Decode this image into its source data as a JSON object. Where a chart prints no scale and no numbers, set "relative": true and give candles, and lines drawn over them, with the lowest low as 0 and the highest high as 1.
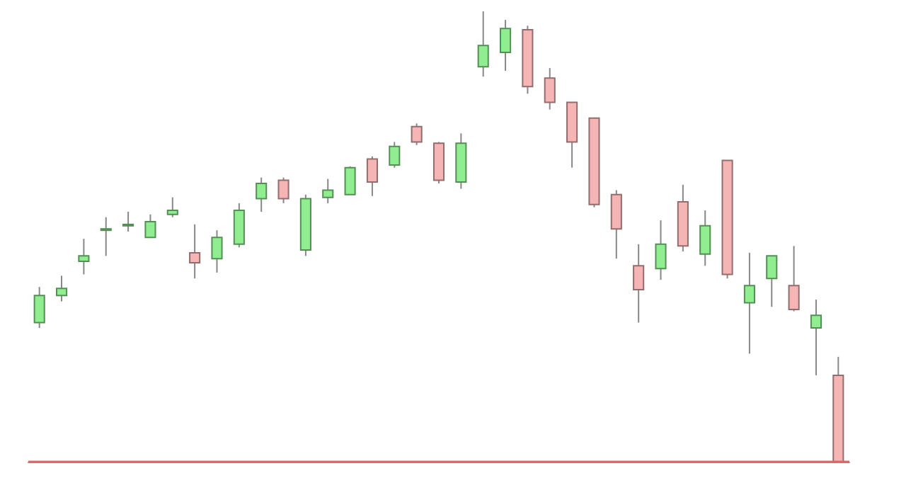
{
  "chart_data": {
    "type": "candlestick",
    "relative": true,
    "colors": [
      "#90ee90",
      "#90ee90",
      "#90ee90",
      "#90ee90",
      "#90ee90",
      "#90ee90",
      "#90ee90",
      "#f5b5b5",
      "#90ee90",
      "#90ee90",
      "#90ee90",
      "#f5b5b5",
      "#90ee90",
      "#90ee90",
      "#90ee90",
      "#f5b5b5",
      "#90ee90",
      "#f5b5b5",
      "#f5b5b5",
      "#90ee90",
      "#90ee90",
      "#90ee90",
      "#f5b5b5",
      "#f5b5b5",
      "#f5b5b5",
      "#f5b5b5",
      "#f5b5b5",
      "#f5b5b5",
      "#90ee90",
      "#f5b5b5",
      "#90ee90",
      "#f5b5b5",
      "#90ee90",
      "#90ee90",
      "#f5b5b5",
      "#90ee90",
      "#f5b5b5"
    ],
    "categories": [
      null,
      null,
      null,
      null,
      null,
      null,
      null,
      null,
      null,
      null,
      null,
      null,
      null,
      null,
      null,
      null,
      null,
      null,
      null,
      null,
      null,
      null,
      null,
      null,
      null,
      null,
      null,
      null,
      null,
      null,
      null,
      null,
      null,
      null,
      null,
      null,
      null
    ],
    "ohlc": [
      [
        0.309,
        0.388,
        0.297,
        0.369
      ],
      [
        0.369,
        0.413,
        0.356,
        0.385
      ],
      [
        0.445,
        0.495,
        0.416,
        0.457
      ],
      [
        0.517,
        0.543,
        0.457,
        0.517
      ],
      [
        0.527,
        0.555,
        0.511,
        0.527
      ],
      [
        0.498,
        0.549,
        0.498,
        0.533
      ],
      [
        0.549,
        0.587,
        0.543,
        0.558
      ],
      [
        0.464,
        0.527,
        0.407,
        0.442
      ],
      [
        0.451,
        0.514,
        0.42,
        0.498
      ],
      [
        0.483,
        0.574,
        0.476,
        0.558
      ],
      [
        0.584,
        0.631,
        0.555,
        0.618
      ],
      [
        0.625,
        0.631,
        0.574,
        0.584
      ],
      [
        0.47,
        0.593,
        0.457,
        0.584
      ],
      [
        0.587,
        0.628,
        0.574,
        0.603
      ],
      [
        0.593,
        0.656,
        0.593,
        0.653
      ],
      [
        0.672,
        0.678,
        0.59,
        0.621
      ],
      [
        0.659,
        0.71,
        0.653,
        0.7
      ],
      [
        0.744,
        0.751,
        0.703,
        0.71
      ],
      [
        0.707,
        0.71,
        0.618,
        0.625
      ],
      [
        0.621,
        0.729,
        0.606,
        0.707
      ],
      [
        0.877,
        1,
        0.855,
        0.924
      ],
      [
        0.909,
        0.981,
        0.868,
        0.962
      ],
      [
        0.959,
        0.968,
        0.817,
        0.833
      ],
      [
        0.852,
        0.874,
        0.782,
        0.798
      ],
      [
        0.798,
        0.798,
        0.653,
        0.71
      ],
      [
        0.763,
        0.763,
        0.565,
        0.571
      ],
      [
        0.593,
        0.603,
        0.451,
        0.517
      ],
      [
        0.435,
        0.483,
        0.309,
        0.382
      ],
      [
        0.429,
        0.536,
        0.404,
        0.483
      ],
      [
        0.577,
        0.615,
        0.467,
        0.479
      ],
      [
        0.461,
        0.558,
        0.435,
        0.524
      ],
      [
        0.669,
        0.669,
        0.407,
        0.416
      ],
      [
        0.353,
        0.464,
        0.24,
        0.391
      ],
      [
        0.407,
        0.457,
        0.344,
        0.457
      ],
      [
        0.391,
        0.479,
        0.334,
        0.338
      ],
      [
        0.297,
        0.36,
        0.192,
        0.325
      ],
      [
        0.192,
        0.233,
        0,
        0
      ]
    ],
    "ref_lines": [
      {
        "axis": "y",
        "value": 0,
        "color": "#e06666"
      }
    ],
    "grid": false
  }
}
